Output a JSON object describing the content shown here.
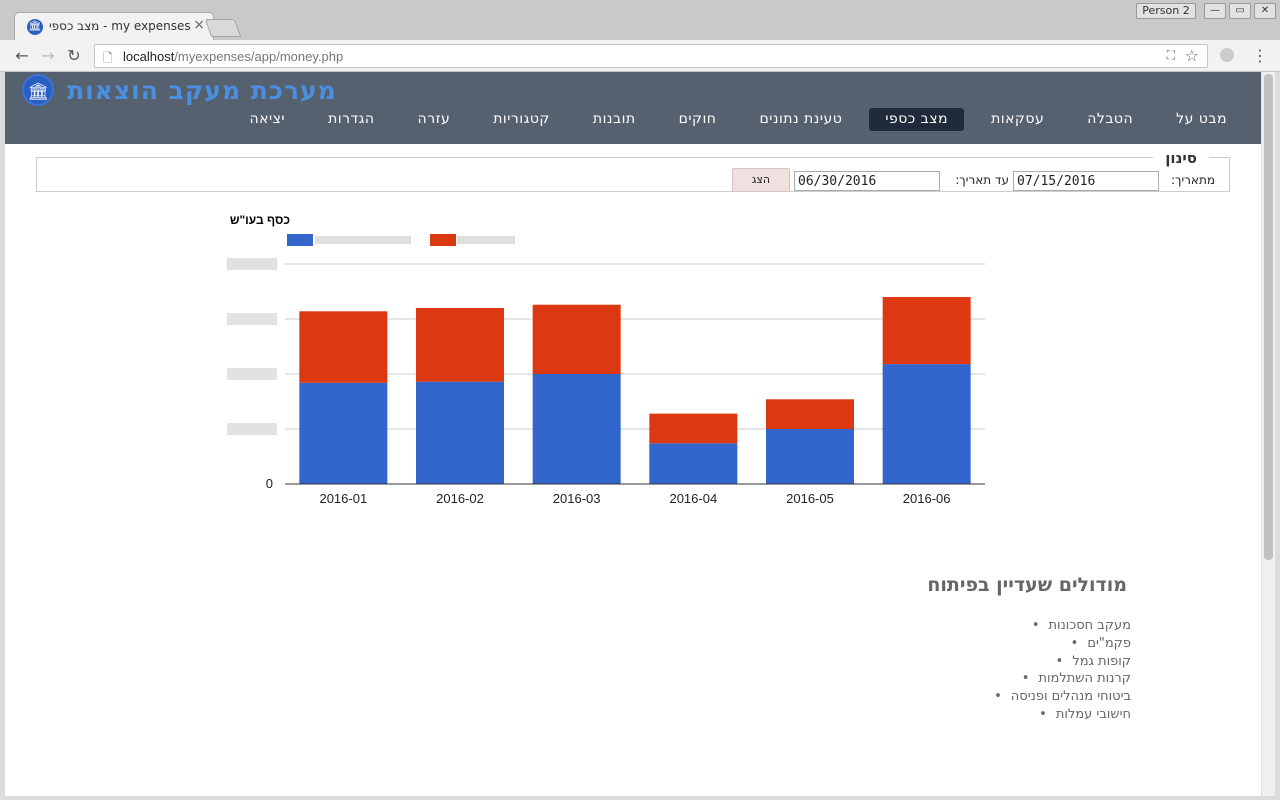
{
  "browser": {
    "tab_title": "מצב כספי - my expenses",
    "profile": "Person 2",
    "url_host": "localhost",
    "url_path": "/myexpenses/app/money.php"
  },
  "site": {
    "title": "מערכת מעקב הוצאות",
    "nav": [
      {
        "label": "מבט על",
        "active": false
      },
      {
        "label": "הטבלה",
        "active": false
      },
      {
        "label": "עסקאות",
        "active": false
      },
      {
        "label": "מצב כספי",
        "active": true
      },
      {
        "label": "טעינת נתונים",
        "active": false
      },
      {
        "label": "חוקים",
        "active": false
      },
      {
        "label": "תובנות",
        "active": false
      },
      {
        "label": "קטגוריות",
        "active": false
      },
      {
        "label": "עזרה",
        "active": false
      },
      {
        "label": "הגדרות",
        "active": false
      },
      {
        "label": "יציאה",
        "active": false
      }
    ]
  },
  "filter": {
    "legend": "סינון",
    "from_label": "מתאריך:",
    "from_value": "07/15/2016",
    "to_label": "עד תאריך:",
    "to_value": "06/30/2016",
    "show_button": "הצג"
  },
  "chart_data": {
    "type": "bar",
    "stacked": true,
    "title": "כסף בעו\"ש",
    "categories": [
      "2016-01",
      "2016-02",
      "2016-03",
      "2016-04",
      "2016-05",
      "2016-06"
    ],
    "series": [
      {
        "color": "#3366cc",
        "values": [
          92,
          93,
          100,
          37,
          50,
          109
        ]
      },
      {
        "color": "#dc3912",
        "values": [
          65,
          67,
          63,
          27,
          27,
          61
        ]
      }
    ],
    "ylim": [
      0,
      200
    ],
    "y_ticks_visible": [
      "0"
    ],
    "grid": true,
    "legend": "top"
  },
  "modules": {
    "title": "מודולים שעדיין בפיתוח",
    "items": [
      "מעקב חסכונות",
      "פקמ\"ים",
      "קופות גמל",
      "קרנות השתלמות",
      "ביטוחי מנהלים ופניסה",
      "חישובי עמלות"
    ]
  }
}
